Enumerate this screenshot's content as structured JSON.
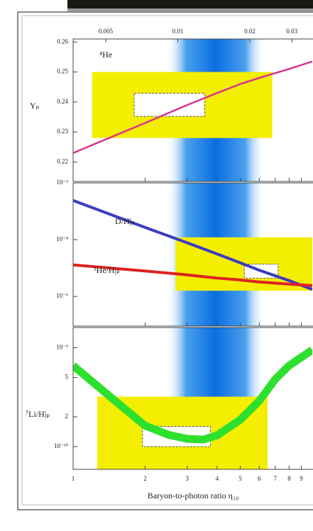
{
  "chart_data": [
    {
      "type": "line",
      "annotation": "⁴He",
      "ylabel": "Yₚ",
      "x": [
        1,
        2,
        3,
        4,
        5,
        6,
        8,
        10
      ],
      "series": [
        {
          "color": "#d9348c",
          "values": [
            0.223,
            0.233,
            0.239,
            0.243,
            0.246,
            0.248,
            0.251,
            0.2535
          ]
        }
      ],
      "ylim": [
        0.2135,
        0.261
      ],
      "yticks": [
        0.22,
        0.23,
        0.24,
        0.25,
        0.26
      ],
      "x2lim": [
        0.00365,
        0.0365
      ],
      "x2ticks": [
        0.005,
        0.01,
        0.02,
        0.03
      ],
      "x2scale": "log",
      "band": [
        2.45,
        6.35
      ],
      "boxes": [
        {
          "x": [
            1.2,
            6.8
          ],
          "y": [
            0.228,
            0.25
          ]
        }
      ],
      "dashed_boxes": [
        {
          "x": [
            1.8,
            3.55
          ],
          "y": [
            0.2352,
            0.2429
          ]
        }
      ]
    },
    {
      "type": "line",
      "yscale": "log",
      "x": [
        1,
        2,
        3,
        4,
        5,
        6,
        8,
        10
      ],
      "series": [
        {
          "name": "D/H|ₚ",
          "color": "#3b3bc0",
          "values": [
            0.00049,
            0.000165,
            8.8e-05,
            5.6e-05,
            3.9e-05,
            2.9e-05,
            1.9e-05,
            1.33e-05
          ]
        },
        {
          "name": "³He/H|ₚ",
          "color": "#dd2222",
          "values": [
            3.6e-05,
            2.8e-05,
            2.4e-05,
            2.1e-05,
            1.95e-05,
            1.8e-05,
            1.65e-05,
            1.55e-05
          ]
        }
      ],
      "ylim": [
        3e-06,
        0.001
      ],
      "yticks": [
        {
          "value": 0.001,
          "label": "10⁻³"
        },
        {
          "value": 0.0001,
          "label": "10⁻⁴"
        },
        {
          "value": 1e-05,
          "label": "10⁻⁵"
        }
      ],
      "band": [
        2.45,
        6.35
      ],
      "boxes": [
        {
          "x": [
            2.68,
            10
          ],
          "y": [
            1.26e-05,
            0.00011
          ]
        }
      ],
      "dashed_boxes": [
        {
          "x": [
            5.2,
            7.2
          ],
          "y": [
            2.1e-05,
            3.7e-05
          ]
        }
      ]
    },
    {
      "type": "line",
      "yscale": "log",
      "ylabel": "⁷Li/H|ₚ",
      "xlabel": "Baryon-to-photon ratio η₁₀",
      "x": [
        1,
        1.5,
        2,
        2.5,
        3,
        3.5,
        4,
        5,
        6,
        7,
        8,
        10
      ],
      "series": [
        {
          "color": "#2ee02e",
          "values": [
            6.6e-10,
            2.9e-10,
            1.63e-10,
            1.32e-10,
            1.2e-10,
            1.18e-10,
            1.3e-10,
            1.87e-10,
            2.9e-10,
            4.8e-10,
            6.6e-10,
            9.5e-10
          ]
        }
      ],
      "ylim": [
        5.9e-11,
        1.6e-09
      ],
      "yticks": [
        {
          "value": 1e-09,
          "label": "10⁻⁹"
        },
        {
          "value": 5e-10,
          "label": "5"
        },
        {
          "value": 2e-10,
          "label": "2"
        },
        {
          "value": 1e-10,
          "label": "10⁻¹⁰"
        }
      ],
      "xlim": [
        1,
        10
      ],
      "xticks": [
        1,
        2,
        3,
        4,
        5,
        6,
        7,
        8,
        9
      ],
      "xscale": "log",
      "band": [
        2.45,
        6.35
      ],
      "boxes": [
        {
          "x": [
            1.26,
            6.5
          ],
          "y": [
            5.9e-11,
            3.2e-10
          ]
        }
      ],
      "dashed_boxes": [
        {
          "x": [
            1.95,
            3.75
          ],
          "y": [
            1e-10,
            1.6e-10
          ]
        }
      ]
    }
  ]
}
